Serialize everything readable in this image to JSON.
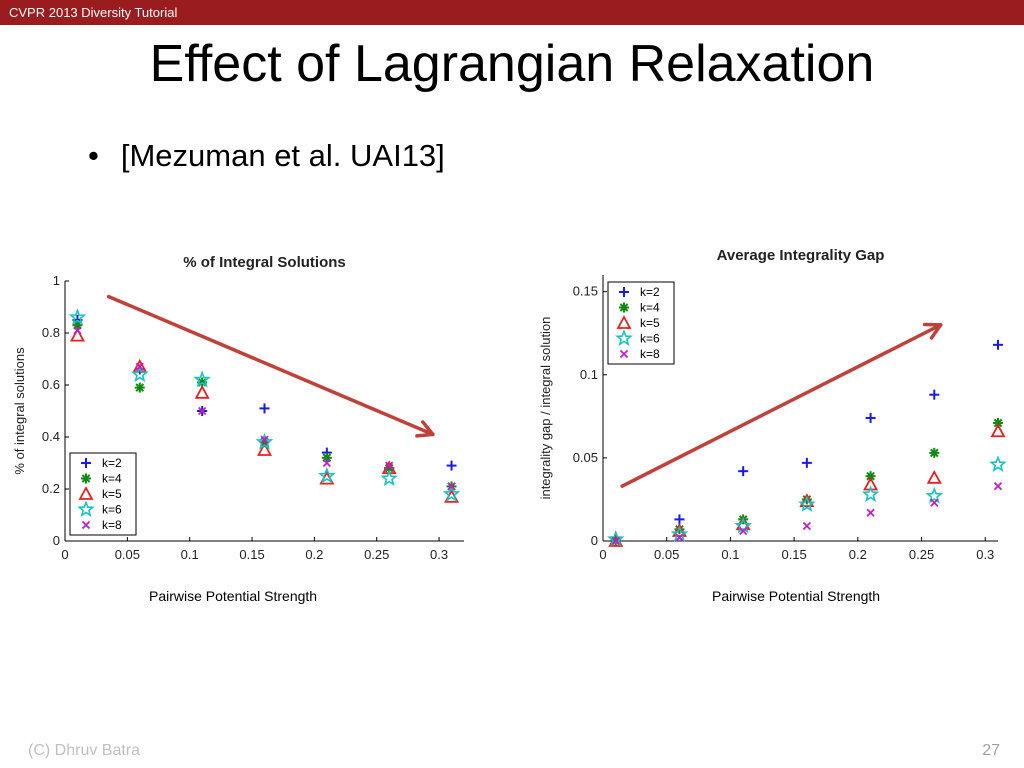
{
  "header": {
    "course": "CVPR 2013 Diversity Tutorial"
  },
  "slide": {
    "title": "Effect of Lagrangian Relaxation",
    "bullet": "[Mezuman et al. UAI13]",
    "bullet_symbol": "•",
    "footer_author": "(C) Dhruv Batra",
    "page_number": "27"
  },
  "colors": {
    "k=2": "#1a1ae6",
    "k=4": "#118811",
    "k=5": "#e62020",
    "k=6": "#19c2c2",
    "k=8": "#c020c0",
    "arrow": "#c0403a",
    "banner": "#9b1c1f"
  },
  "chart_data": [
    {
      "type": "scatter",
      "title": "% of Integral Solutions",
      "xlabel": "Pairwise Potential Strength",
      "ylabel": "% of integral solutions",
      "xlim": [
        0,
        0.32
      ],
      "ylim": [
        0,
        1
      ],
      "xticks": [
        "0",
        "0.05",
        "0.1",
        "0.15",
        "0.2",
        "0.25",
        "0.3"
      ],
      "yticks": [
        "0",
        "0.2",
        "0.4",
        "0.6",
        "0.8",
        "1"
      ],
      "legend_position": "bottom-left",
      "x": [
        0.01,
        0.06,
        0.11,
        0.16,
        0.21,
        0.26,
        0.31
      ],
      "series": [
        {
          "name": "k=2",
          "marker": "plus",
          "values": [
            0.85,
            0.66,
            0.5,
            0.51,
            0.34,
            0.28,
            0.29
          ]
        },
        {
          "name": "k=4",
          "marker": "asterisk",
          "values": [
            0.83,
            0.59,
            0.61,
            0.38,
            0.32,
            0.28,
            0.21
          ]
        },
        {
          "name": "k=5",
          "marker": "triangle",
          "values": [
            0.79,
            0.67,
            0.57,
            0.35,
            0.24,
            0.28,
            0.17
          ]
        },
        {
          "name": "k=6",
          "marker": "star",
          "values": [
            0.86,
            0.64,
            0.62,
            0.38,
            0.25,
            0.24,
            0.18
          ]
        },
        {
          "name": "k=8",
          "marker": "cross",
          "values": [
            0.81,
            0.67,
            0.5,
            0.39,
            0.3,
            0.29,
            0.21
          ]
        }
      ],
      "arrow": {
        "from": [
          0.035,
          0.94
        ],
        "to": [
          0.295,
          0.41
        ]
      }
    },
    {
      "type": "scatter",
      "title": "Average Integrality Gap",
      "xlabel": "Pairwise Potential Strength",
      "ylabel": "integrality gap / integral solution",
      "xlim": [
        0,
        0.31
      ],
      "ylim": [
        0,
        0.16
      ],
      "xticks": [
        "0",
        "0.05",
        "0.1",
        "0.15",
        "0.2",
        "0.25",
        "0.3"
      ],
      "yticks": [
        "0",
        "0.05",
        "0.1",
        "0.15"
      ],
      "legend_position": "top-left",
      "x": [
        0.01,
        0.06,
        0.11,
        0.16,
        0.21,
        0.26,
        0.31
      ],
      "series": [
        {
          "name": "k=2",
          "marker": "plus",
          "values": [
            0.001,
            0.013,
            0.042,
            0.047,
            0.074,
            0.088,
            0.118
          ]
        },
        {
          "name": "k=4",
          "marker": "asterisk",
          "values": [
            0.0,
            0.007,
            0.013,
            0.025,
            0.039,
            0.053,
            0.071
          ]
        },
        {
          "name": "k=5",
          "marker": "triangle",
          "values": [
            0.0,
            0.006,
            0.01,
            0.024,
            0.034,
            0.038,
            0.066
          ]
        },
        {
          "name": "k=6",
          "marker": "star",
          "values": [
            0.001,
            0.004,
            0.009,
            0.022,
            0.028,
            0.027,
            0.046
          ]
        },
        {
          "name": "k=8",
          "marker": "cross",
          "values": [
            0.0,
            0.002,
            0.006,
            0.009,
            0.017,
            0.023,
            0.033
          ]
        }
      ],
      "arrow": {
        "from": [
          0.015,
          0.033
        ],
        "to": [
          0.265,
          0.13
        ]
      }
    }
  ]
}
